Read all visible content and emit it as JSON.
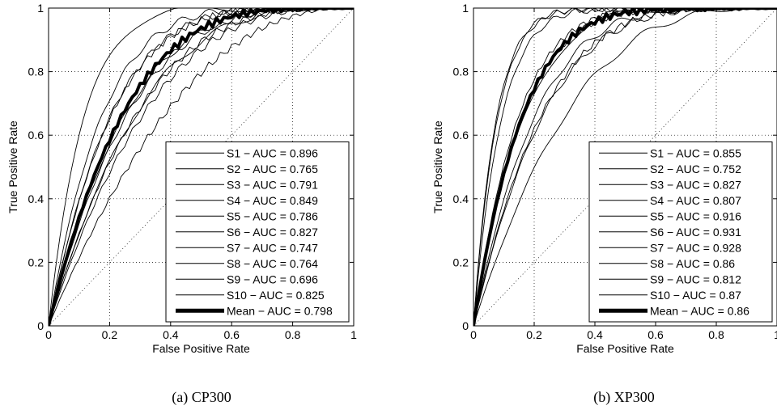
{
  "chart_data": [
    {
      "type": "line",
      "caption": "(a)  CP300",
      "xlabel": "False Positive Rate",
      "ylabel": "True Positive Rate",
      "xlim": [
        0,
        1
      ],
      "ylim": [
        0,
        1
      ],
      "xticks": [
        "0",
        "0.2",
        "0.4",
        "0.6",
        "0.8",
        "1"
      ],
      "yticks": [
        "0",
        "0.2",
        "0.4",
        "0.6",
        "0.8",
        "1"
      ],
      "grid": true,
      "legend_position": "bottom-right",
      "chance_line": {
        "x": [
          0,
          1
        ],
        "y": [
          0,
          1
        ],
        "style": "dotted"
      },
      "series": [
        {
          "name": "S1 − AUC = 0.896",
          "auc": 0.896,
          "line_width": "thin"
        },
        {
          "name": "S2 − AUC = 0.765",
          "auc": 0.765,
          "line_width": "thin"
        },
        {
          "name": "S3 − AUC = 0.791",
          "auc": 0.791,
          "line_width": "thin"
        },
        {
          "name": "S4 − AUC = 0.849",
          "auc": 0.849,
          "line_width": "thin"
        },
        {
          "name": "S5 − AUC = 0.786",
          "auc": 0.786,
          "line_width": "thin"
        },
        {
          "name": "S6 − AUC = 0.827",
          "auc": 0.827,
          "line_width": "thin"
        },
        {
          "name": "S7 − AUC = 0.747",
          "auc": 0.747,
          "line_width": "thin"
        },
        {
          "name": "S8 − AUC = 0.764",
          "auc": 0.764,
          "line_width": "thin"
        },
        {
          "name": "S9 − AUC = 0.696",
          "auc": 0.696,
          "line_width": "thin"
        },
        {
          "name": "S10 − AUC = 0.825",
          "auc": 0.825,
          "line_width": "thin"
        },
        {
          "name": "Mean − AUC = 0.798",
          "auc": 0.798,
          "line_width": "thick"
        }
      ]
    },
    {
      "type": "line",
      "caption": "(b)  XP300",
      "xlabel": "False Positive Rate",
      "ylabel": "True Positive Rate",
      "xlim": [
        0,
        1
      ],
      "ylim": [
        0,
        1
      ],
      "xticks": [
        "0",
        "0.2",
        "0.4",
        "0.6",
        "0.8",
        "1"
      ],
      "yticks": [
        "0",
        "0.2",
        "0.4",
        "0.6",
        "0.8",
        "1"
      ],
      "grid": true,
      "legend_position": "bottom-right",
      "chance_line": {
        "x": [
          0,
          1
        ],
        "y": [
          0,
          1
        ],
        "style": "dotted"
      },
      "series": [
        {
          "name": "S1 − AUC = 0.855",
          "auc": 0.855,
          "line_width": "thin"
        },
        {
          "name": "S2 − AUC = 0.752",
          "auc": 0.752,
          "line_width": "thin"
        },
        {
          "name": "S3 − AUC = 0.827",
          "auc": 0.827,
          "line_width": "thin"
        },
        {
          "name": "S4 − AUC = 0.807",
          "auc": 0.807,
          "line_width": "thin"
        },
        {
          "name": "S5 − AUC = 0.916",
          "auc": 0.916,
          "line_width": "thin"
        },
        {
          "name": "S6 − AUC = 0.931",
          "auc": 0.931,
          "line_width": "thin"
        },
        {
          "name": "S7 − AUC = 0.928",
          "auc": 0.928,
          "line_width": "thin"
        },
        {
          "name": "S8 − AUC = 0.86",
          "auc": 0.86,
          "line_width": "thin"
        },
        {
          "name": "S9 − AUC = 0.812",
          "auc": 0.812,
          "line_width": "thin"
        },
        {
          "name": "S10 − AUC = 0.87",
          "auc": 0.87,
          "line_width": "thin"
        },
        {
          "name": "Mean − AUC = 0.86",
          "auc": 0.86,
          "line_width": "thick"
        }
      ]
    }
  ]
}
